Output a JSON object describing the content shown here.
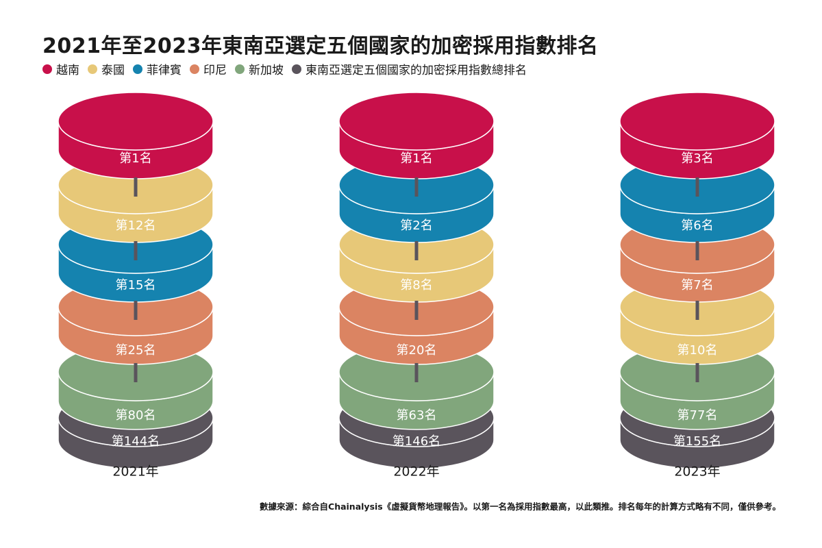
{
  "title": "2021年至2023年東南亞選定五個國家的加密採用指數排名",
  "legend": [
    {
      "label": "越南",
      "color": "#c8104a"
    },
    {
      "label": "泰國",
      "color": "#e7c878"
    },
    {
      "label": "菲律賓",
      "color": "#1583af"
    },
    {
      "label": "印尼",
      "color": "#db8462"
    },
    {
      "label": "新加坡",
      "color": "#81a67c"
    },
    {
      "label": "東南亞選定五個國家的加密採用指數總排名",
      "color": "#5a545c"
    }
  ],
  "source": "數據來源：綜合自Chainalysis《虛擬貨幣地理報告》。以第一名為採用指數最高，以此類推。排名每年的計算方式略有不同，僅供參考。",
  "chart_data": {
    "type": "stacked-cylinder-ranking",
    "title": "2021年至2023年東南亞選定五個國家的加密採用指數排名",
    "columns": [
      {
        "year_label": "2021年",
        "tiers": [
          {
            "country": "越南",
            "rank": 1,
            "label": "第1名"
          },
          {
            "country": "泰國",
            "rank": 12,
            "label": "第12名"
          },
          {
            "country": "菲律賓",
            "rank": 15,
            "label": "第15名"
          },
          {
            "country": "印尼",
            "rank": 25,
            "label": "第25名"
          },
          {
            "country": "新加坡",
            "rank": 80,
            "label": "第80名"
          }
        ],
        "total": {
          "rank": 144,
          "label": "第144名"
        }
      },
      {
        "year_label": "2022年",
        "tiers": [
          {
            "country": "越南",
            "rank": 1,
            "label": "第1名"
          },
          {
            "country": "菲律賓",
            "rank": 2,
            "label": "第2名"
          },
          {
            "country": "泰國",
            "rank": 8,
            "label": "第8名"
          },
          {
            "country": "印尼",
            "rank": 20,
            "label": "第20名"
          },
          {
            "country": "新加坡",
            "rank": 63,
            "label": "第63名"
          }
        ],
        "total": {
          "rank": 146,
          "label": "第146名"
        }
      },
      {
        "year_label": "2023年",
        "tiers": [
          {
            "country": "越南",
            "rank": 3,
            "label": "第3名"
          },
          {
            "country": "菲律賓",
            "rank": 6,
            "label": "第6名"
          },
          {
            "country": "印尼",
            "rank": 7,
            "label": "第7名"
          },
          {
            "country": "泰國",
            "rank": 10,
            "label": "第10名"
          },
          {
            "country": "新加坡",
            "rank": 77,
            "label": "第77名"
          }
        ],
        "total": {
          "rank": 155,
          "label": "第155名"
        }
      }
    ]
  }
}
